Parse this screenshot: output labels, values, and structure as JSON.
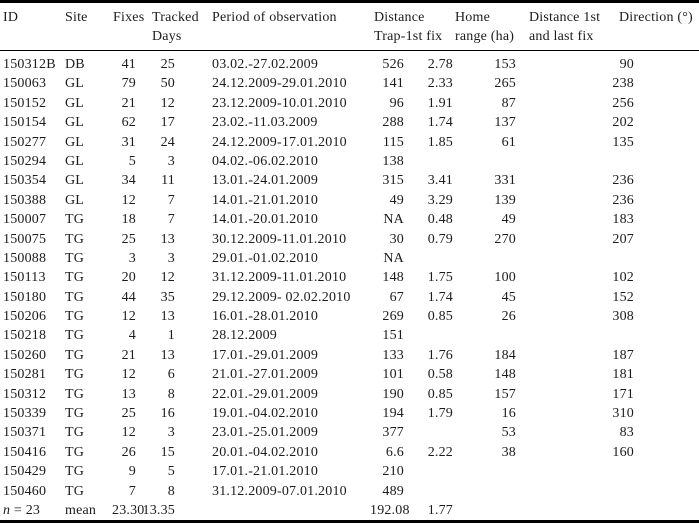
{
  "colors": {
    "text": "#1c1c1c",
    "rule": "#000000",
    "background": "#ffffff"
  },
  "table": {
    "columns": [
      {
        "key": "id",
        "label": "ID"
      },
      {
        "key": "site",
        "label": "Site"
      },
      {
        "key": "fixes",
        "label": "Fixes"
      },
      {
        "key": "days",
        "label": "Tracked\nDays"
      },
      {
        "key": "period",
        "label": "Period of observation"
      },
      {
        "key": "dist_trap",
        "label": "Distance\nTrap-1st fix"
      },
      {
        "key": "home_range",
        "label": "Home\nrange (ha)"
      },
      {
        "key": "dist_first_last",
        "label": "Distance 1st\nand last fix"
      },
      {
        "key": "direction",
        "label": "Direction (°)"
      }
    ],
    "rows": [
      {
        "id": "150312B",
        "site": "DB",
        "fixes": "41",
        "days": "25",
        "period": "03.02.-27.02.2009",
        "dist_trap": "526",
        "home_range": "2.78",
        "dist_first_last": "153",
        "direction": "90"
      },
      {
        "id": "150063",
        "site": "GL",
        "fixes": "79",
        "days": "50",
        "period": "24.12.2009-29.01.2010",
        "dist_trap": "141",
        "home_range": "2.33",
        "dist_first_last": "265",
        "direction": "238"
      },
      {
        "id": "150152",
        "site": "GL",
        "fixes": "21",
        "days": "12",
        "period": "23.12.2009-10.01.2010",
        "dist_trap": "96",
        "home_range": "1.91",
        "dist_first_last": "87",
        "direction": "256"
      },
      {
        "id": "150154",
        "site": "GL",
        "fixes": "62",
        "days": "17",
        "period": "23.02.-11.03.2009",
        "dist_trap": "288",
        "home_range": "1.74",
        "dist_first_last": "137",
        "direction": "202"
      },
      {
        "id": "150277",
        "site": "GL",
        "fixes": "31",
        "days": "24",
        "period": "24.12.2009-17.01.2010",
        "dist_trap": "115",
        "home_range": "1.85",
        "dist_first_last": "61",
        "direction": "135"
      },
      {
        "id": "150294",
        "site": "GL",
        "fixes": "5",
        "days": "3",
        "period": "04.02.-06.02.2010",
        "dist_trap": "138",
        "home_range": "",
        "dist_first_last": "",
        "direction": ""
      },
      {
        "id": "150354",
        "site": "GL",
        "fixes": "34",
        "days": "11",
        "period": "13.01.-24.01.2009",
        "dist_trap": "315",
        "home_range": "3.41",
        "dist_first_last": "331",
        "direction": "236"
      },
      {
        "id": "150388",
        "site": "GL",
        "fixes": "12",
        "days": "7",
        "period": "14.01.-21.01.2010",
        "dist_trap": "49",
        "home_range": "3.29",
        "dist_first_last": "139",
        "direction": "236"
      },
      {
        "id": "150007",
        "site": "TG",
        "fixes": "18",
        "days": "7",
        "period": "14.01.-20.01.2010",
        "dist_trap": "NA",
        "home_range": "0.48",
        "dist_first_last": "49",
        "direction": "183"
      },
      {
        "id": "150075",
        "site": "TG",
        "fixes": "25",
        "days": "13",
        "period": "30.12.2009-11.01.2010",
        "dist_trap": "30",
        "home_range": "0.79",
        "dist_first_last": "270",
        "direction": "207"
      },
      {
        "id": "150088",
        "site": "TG",
        "fixes": "3",
        "days": "3",
        "period": "29.01.-01.02.2010",
        "dist_trap": "NA",
        "home_range": "",
        "dist_first_last": "",
        "direction": ""
      },
      {
        "id": "150113",
        "site": "TG",
        "fixes": "20",
        "days": "12",
        "period": "31.12.2009-11.01.2010",
        "dist_trap": "148",
        "home_range": "1.75",
        "dist_first_last": "100",
        "direction": "102"
      },
      {
        "id": "150180",
        "site": "TG",
        "fixes": "44",
        "days": "35",
        "period": "29.12.2009- 02.02.2010",
        "dist_trap": "67",
        "home_range": "1.74",
        "dist_first_last": "45",
        "direction": "152"
      },
      {
        "id": "150206",
        "site": "TG",
        "fixes": "12",
        "days": "13",
        "period": "16.01.-28.01.2010",
        "dist_trap": "269",
        "home_range": "0.85",
        "dist_first_last": "26",
        "direction": "308"
      },
      {
        "id": "150218",
        "site": "TG",
        "fixes": "4",
        "days": "1",
        "period": "28.12.2009",
        "dist_trap": "151",
        "home_range": "",
        "dist_first_last": "",
        "direction": ""
      },
      {
        "id": "150260",
        "site": "TG",
        "fixes": "21",
        "days": "13",
        "period": "17.01.-29.01.2009",
        "dist_trap": "133",
        "home_range": "1.76",
        "dist_first_last": "184",
        "direction": "187"
      },
      {
        "id": "150281",
        "site": "TG",
        "fixes": "12",
        "days": "6",
        "period": "21.01.-27.01.2009",
        "dist_trap": "101",
        "home_range": "0.58",
        "dist_first_last": "148",
        "direction": "181"
      },
      {
        "id": "150312",
        "site": "TG",
        "fixes": "13",
        "days": "8",
        "period": "22.01.-29.01.2009",
        "dist_trap": "190",
        "home_range": "0.85",
        "dist_first_last": "157",
        "direction": "171"
      },
      {
        "id": "150339",
        "site": "TG",
        "fixes": "25",
        "days": "16",
        "period": "19.01.-04.02.2010",
        "dist_trap": "194",
        "home_range": "1.79",
        "dist_first_last": "16",
        "direction": "310"
      },
      {
        "id": "150371",
        "site": "TG",
        "fixes": "12",
        "days": "3",
        "period": "23.01.-25.01.2009",
        "dist_trap": "377",
        "home_range": "",
        "dist_first_last": "53",
        "direction": "83"
      },
      {
        "id": "150416",
        "site": "TG",
        "fixes": "26",
        "days": "15",
        "period": "20.01.-04.02.2010",
        "dist_trap": "6.6",
        "home_range": "2.22",
        "dist_first_last": "38",
        "direction": "160"
      },
      {
        "id": "150429",
        "site": "TG",
        "fixes": "9",
        "days": "5",
        "period": "17.01.-21.01.2010",
        "dist_trap": "210",
        "home_range": "",
        "dist_first_last": "",
        "direction": ""
      },
      {
        "id": "150460",
        "site": "TG",
        "fixes": "7",
        "days": "8",
        "period": "31.12.2009-07.01.2010",
        "dist_trap": "489",
        "home_range": "",
        "dist_first_last": "",
        "direction": ""
      }
    ],
    "summary": {
      "n_italic": "n",
      "n_rest": " = 23",
      "site": "mean",
      "fixes": "23.30",
      "days": "13.35",
      "period": "",
      "dist_trap": "192.08",
      "home_range": "1.77",
      "dist_first_last": "",
      "direction": ""
    }
  }
}
